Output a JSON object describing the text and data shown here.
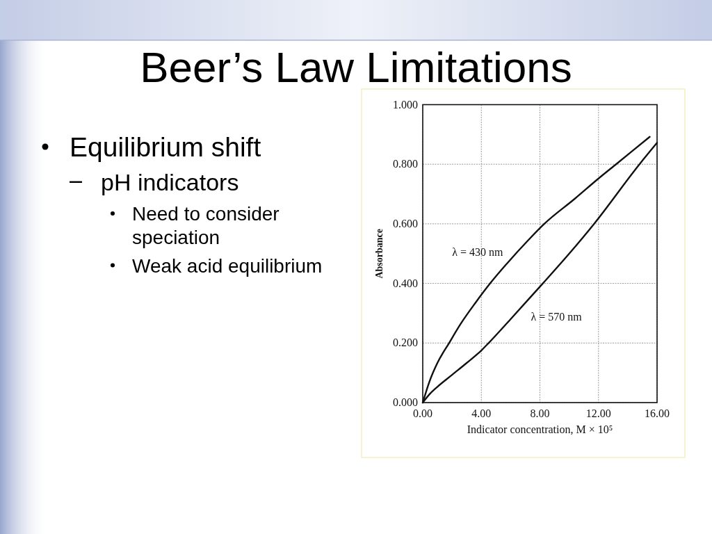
{
  "chart_data": {
    "type": "line",
    "title": "Beer’s Law Limitations",
    "xlabel": "Indicator concentration, M × 10⁵",
    "ylabel": "Absorbance",
    "annotations": [
      "Equilibrium shift",
      "pH indicators",
      "Need to consider speciation",
      "Weak acid equilibrium"
    ],
    "series": [
      {
        "name": "λ = 430 nm",
        "color": "#111111",
        "x": [
          0,
          0.2,
          0.5,
          1,
          1.8,
          2.6,
          3.6,
          4.6,
          5.7,
          7.2,
          8.3,
          10.4,
          12,
          13.2,
          15.5
        ],
        "values": [
          0,
          0.032,
          0.076,
          0.133,
          0.2,
          0.265,
          0.335,
          0.4,
          0.464,
          0.545,
          0.6,
          0.685,
          0.752,
          0.8,
          0.892
        ]
      },
      {
        "name": "λ = 570 nm",
        "color": "#111111",
        "x": [
          0,
          0.5,
          1,
          2,
          3,
          4,
          4.5,
          6,
          8.2,
          10,
          11.7,
          14.8,
          16
        ],
        "values": [
          0,
          0.03,
          0.053,
          0.093,
          0.133,
          0.175,
          0.2,
          0.28,
          0.4,
          0.5,
          0.6,
          0.8,
          0.872
        ]
      }
    ],
    "xlim": [
      0,
      16
    ],
    "ylim": [
      0,
      1
    ],
    "xticks": [
      {
        "value": 0,
        "label": "0.00"
      },
      {
        "value": 4,
        "label": "4.00"
      },
      {
        "value": 8,
        "label": "8.00"
      },
      {
        "value": 12,
        "label": "12.00"
      },
      {
        "value": 16,
        "label": "16.00"
      }
    ],
    "yticks": [
      {
        "value": 0,
        "label": "0.000"
      },
      {
        "value": 0.2,
        "label": "0.200"
      },
      {
        "value": 0.4,
        "label": "0.400"
      },
      {
        "value": 0.6,
        "label": "0.600"
      },
      {
        "value": 0.8,
        "label": "0.800"
      },
      {
        "value": 1,
        "label": "1.000"
      }
    ],
    "grid": true
  }
}
